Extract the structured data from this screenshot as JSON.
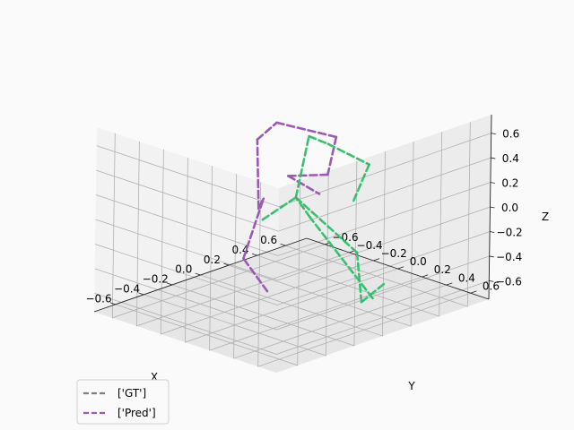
{
  "chart_data": {
    "type": "line3d",
    "title": "",
    "xlabel": "X",
    "ylabel": "Y",
    "zlabel": "Z",
    "xlim": [
      -0.75,
      0.75
    ],
    "ylim": [
      -0.75,
      0.75
    ],
    "zlim": [
      -0.75,
      0.75
    ],
    "x_ticks": [
      "−0.6",
      "−0.4",
      "−0.2",
      "0.0",
      "0.2",
      "0.4",
      "0.6"
    ],
    "y_ticks": [
      "−0.6",
      "−0.4",
      "−0.2",
      "0.0",
      "0.2",
      "0.4",
      "0.6"
    ],
    "z_ticks": [
      "−0.6",
      "−0.4",
      "−0.2",
      "0.0",
      "0.2",
      "0.4",
      "0.6"
    ],
    "grid": true,
    "legend_position": "bottom-left",
    "legend": [
      {
        "label": "['GT']",
        "color": "#808080"
      },
      {
        "label": "['Pred']",
        "color": "#9b59b6"
      }
    ],
    "series": [
      {
        "segments": [
          [
            [
              0.1,
              0.55,
              -0.55
            ],
            [
              0.08,
              0.05,
              -0.05
            ]
          ],
          [
            [
              0.08,
              0.05,
              -0.05
            ],
            [
              0.02,
              0.0,
              0.12
            ]
          ],
          [
            [
              0.02,
              0.0,
              0.12
            ],
            [
              0.15,
              -0.05,
              0.55
            ]
          ],
          [
            [
              0.15,
              -0.05,
              0.55
            ],
            [
              0.2,
              0.05,
              0.5
            ]
          ],
          [
            [
              0.2,
              0.05,
              0.5
            ],
            [
              0.45,
              0.1,
              0.25
            ]
          ],
          [
            [
              0.45,
              0.1,
              0.25
            ],
            [
              0.25,
              0.2,
              0.05
            ]
          ],
          [
            [
              -0.3,
              0.1,
              0.1
            ],
            [
              0.02,
              0.0,
              0.12
            ]
          ],
          [
            [
              0.02,
              0.0,
              0.12
            ],
            [
              0.2,
              0.3,
              -0.3
            ]
          ],
          [
            [
              0.2,
              0.3,
              -0.3
            ],
            [
              0.15,
              0.4,
              -0.65
            ]
          ],
          [
            [
              0.15,
              0.4,
              -0.65
            ],
            [
              0.35,
              0.35,
              -0.6
            ]
          ]
        ],
        "style": "dashed",
        "colors": [
          "#808080",
          "#2ecc71"
        ]
      },
      {
        "name": "['Pred']",
        "segments": [
          [
            [
              0.0,
              -0.2,
              -0.7
            ],
            [
              0.0,
              -0.4,
              -0.5
            ]
          ],
          [
            [
              0.0,
              -0.4,
              -0.5
            ],
            [
              0.05,
              -0.3,
              0.0
            ]
          ],
          [
            [
              0.05,
              -0.3,
              0.0
            ],
            [
              -0.2,
              -0.05,
              0.1
            ]
          ],
          [
            [
              -0.2,
              -0.05,
              0.1
            ],
            [
              0.0,
              -0.3,
              0.5
            ]
          ],
          [
            [
              0.0,
              -0.3,
              0.5
            ],
            [
              0.05,
              -0.2,
              0.65
            ]
          ],
          [
            [
              0.05,
              -0.2,
              0.65
            ],
            [
              0.3,
              0.0,
              0.5
            ]
          ],
          [
            [
              0.3,
              0.0,
              0.5
            ],
            [
              0.2,
              0.05,
              0.25
            ]
          ],
          [
            [
              0.2,
              0.05,
              0.25
            ],
            [
              0.05,
              -0.1,
              0.25
            ]
          ],
          [
            [
              0.05,
              -0.1,
              0.25
            ],
            [
              0.1,
              0.1,
              0.15
            ]
          ]
        ],
        "style": "dashed",
        "color": "#9b59b6"
      }
    ]
  }
}
